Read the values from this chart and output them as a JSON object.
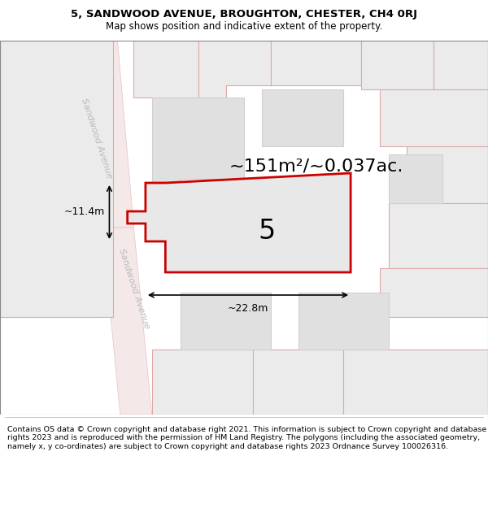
{
  "title": "5, SANDWOOD AVENUE, BROUGHTON, CHESTER, CH4 0RJ",
  "subtitle": "Map shows position and indicative extent of the property.",
  "footer": "Contains OS data © Crown copyright and database right 2021. This information is subject to Crown copyright and database rights 2023 and is reproduced with the permission of HM Land Registry. The polygons (including the associated geometry, namely x, y co-ordinates) are subject to Crown copyright and database rights 2023 Ordnance Survey 100026316.",
  "area_text": "~151m²/~0.037ac.",
  "dim_width": "~22.8m",
  "dim_height": "~11.4m",
  "plot_number": "5",
  "road_label": "Sandwood Avenue",
  "road_fill": "#f5e8e8",
  "road_edge": "#e8c0c0",
  "plot_fill": "#e8e8e8",
  "plot_outline": "#cc0000",
  "neighbor_fill": "#ebebeb",
  "neighbor_edge": "#e0a8a8",
  "building_fill": "#e0e0e0",
  "building_edge": "#d0d0d0",
  "map_bg": "#ffffff",
  "title_fontsize": 9.5,
  "subtitle_fontsize": 8.5,
  "footer_fontsize": 6.8,
  "area_fontsize": 16,
  "plot_label_fontsize": 24,
  "dim_fontsize": 9,
  "road_label_fontsize": 8
}
